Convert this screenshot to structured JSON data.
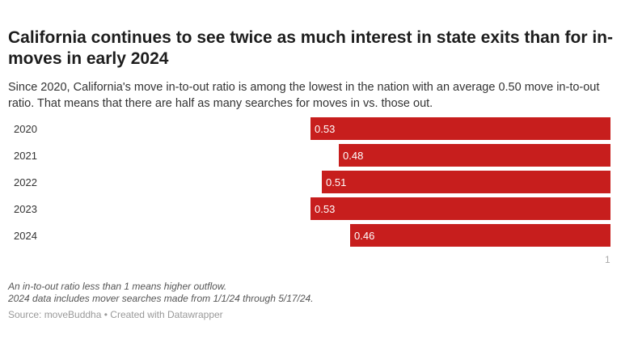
{
  "title": "California continues to see twice as much interest in state exits than for in-moves in early 2024",
  "subtitle": "Since 2020, California's move in-to-out ratio is among the lowest in the nation with an average 0.50 move in-to-out ratio. That means that there are half as many searches for moves in vs. those out.",
  "chart_data": {
    "type": "bar",
    "orientation": "horizontal",
    "categories": [
      "2020",
      "2021",
      "2022",
      "2023",
      "2024"
    ],
    "values": [
      0.53,
      0.48,
      0.51,
      0.53,
      0.46
    ],
    "value_labels": [
      "0.53",
      "0.48",
      "0.51",
      "0.53",
      "0.46"
    ],
    "x_ticks": [
      "1"
    ],
    "bars_extend_from": 1,
    "color": "#c71e1d",
    "grid": false
  },
  "notes": [
    "An in-to-out ratio less than 1 means higher outflow.",
    "2024 data includes mover searches made from 1/1/24 through 5/17/24."
  ],
  "source": "Source: moveBuddha • Created with Datawrapper"
}
